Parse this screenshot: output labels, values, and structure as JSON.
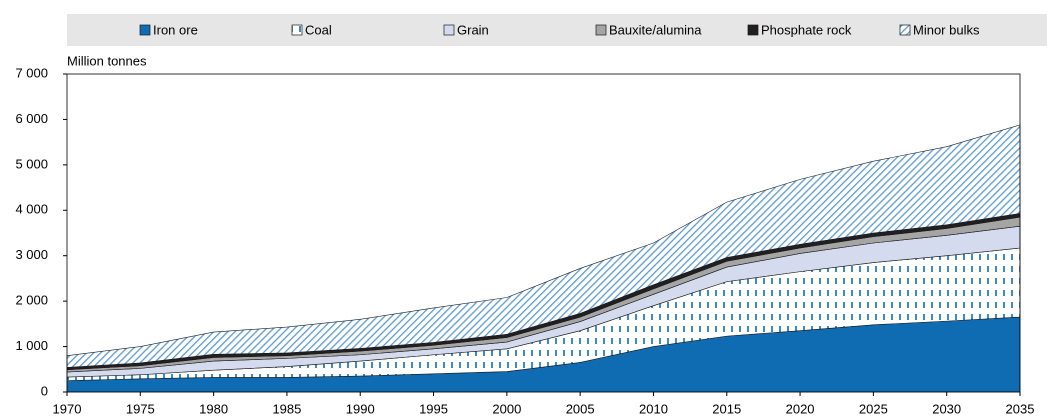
{
  "chart_data": {
    "type": "stacked-area",
    "y_axis_label": "Million tonnes",
    "x": [
      1970,
      1975,
      1980,
      1985,
      1990,
      1995,
      2000,
      2005,
      2010,
      2015,
      2020,
      2025,
      2030,
      2035
    ],
    "xlim": [
      1970,
      2035
    ],
    "xticks": [
      1970,
      1975,
      1980,
      1985,
      1990,
      1995,
      2000,
      2005,
      2010,
      2015,
      2020,
      2025,
      2030,
      2035
    ],
    "ylim": [
      0,
      7000
    ],
    "yticks": [
      0,
      {
        "value": 1000,
        "label": "1 000"
      },
      {
        "value": 2000,
        "label": "2 000"
      },
      {
        "value": 3000,
        "label": "3 000"
      },
      {
        "value": 4000,
        "label": "4 000"
      },
      {
        "value": 5000,
        "label": "5 000"
      },
      {
        "value": 6000,
        "label": "6 000"
      },
      {
        "value": 7000,
        "label": "7 000"
      }
    ],
    "legend_position": "top",
    "series": [
      {
        "name": "Iron ore",
        "color": "#0f6cb3",
        "pattern": "solid",
        "values": [
          250,
          290,
          320,
          320,
          350,
          400,
          450,
          650,
          1000,
          1230,
          1350,
          1480,
          1560,
          1650
        ]
      },
      {
        "name": "Coal",
        "color": "#0f6cb3",
        "pattern": "dashes",
        "values": [
          80,
          90,
          160,
          240,
          330,
          420,
          500,
          700,
          900,
          1200,
          1300,
          1370,
          1440,
          1520
        ]
      },
      {
        "name": "Grain",
        "color": "#d5dbee",
        "pattern": "solid",
        "values": [
          110,
          140,
          200,
          180,
          140,
          130,
          150,
          200,
          250,
          320,
          400,
          430,
          450,
          480
        ]
      },
      {
        "name": "Bauxite/alumina",
        "color": "#a5a5a5",
        "pattern": "solid",
        "values": [
          50,
          60,
          80,
          60,
          80,
          80,
          100,
          100,
          120,
          130,
          120,
          140,
          150,
          200
        ]
      },
      {
        "name": "Phosphate rock",
        "color": "#231f20",
        "pattern": "solid",
        "values": [
          50,
          60,
          70,
          60,
          60,
          60,
          70,
          80,
          90,
          80,
          80,
          80,
          80,
          80
        ]
      },
      {
        "name": "Minor bulks",
        "color": "#5b9bd5",
        "pattern": "hatch",
        "values": [
          260,
          360,
          490,
          570,
          640,
          760,
          810,
          990,
          920,
          1220,
          1430,
          1580,
          1720,
          1950
        ]
      }
    ]
  }
}
